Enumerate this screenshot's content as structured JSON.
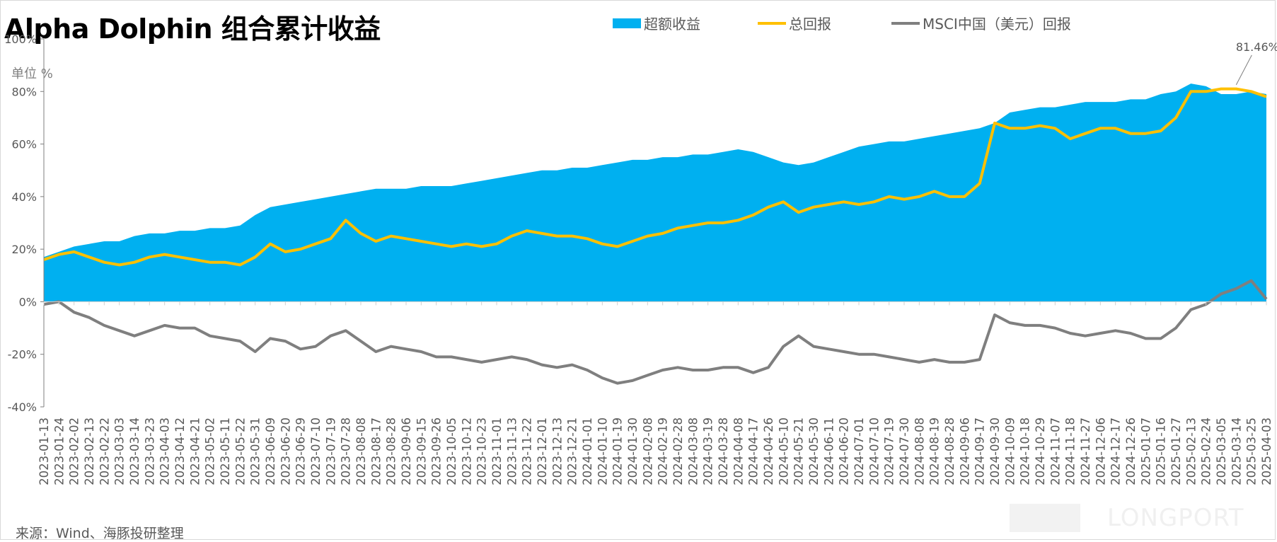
{
  "title": "Alpha Dolphin 组合累计收益",
  "unit_label": "单位  %",
  "source_note": "来源：Wind、海豚投研整理",
  "watermark_text": "LONGPORT",
  "chart_data": {
    "type": "area",
    "ylim": [
      -40,
      100
    ],
    "yticks": [
      -40,
      -20,
      0,
      20,
      40,
      60,
      80,
      100
    ],
    "ytick_labels": [
      "-40%",
      "-20%",
      "0%",
      "20%",
      "40%",
      "60%",
      "80%",
      "100%"
    ],
    "legend_position": "top",
    "grid": false,
    "x_dates": [
      "2023-01-13",
      "2023-01-24",
      "2023-02-02",
      "2023-02-13",
      "2023-02-22",
      "2023-03-03",
      "2023-03-14",
      "2023-03-23",
      "2023-04-03",
      "2023-04-12",
      "2023-04-21",
      "2023-05-02",
      "2023-05-11",
      "2023-05-22",
      "2023-05-31",
      "2023-06-09",
      "2023-06-20",
      "2023-06-29",
      "2023-07-10",
      "2023-07-19",
      "2023-07-28",
      "2023-08-08",
      "2023-08-17",
      "2023-08-28",
      "2023-09-06",
      "2023-09-15",
      "2023-09-26",
      "2023-10-05",
      "2023-10-12",
      "2023-10-23",
      "2023-11-01",
      "2023-11-13",
      "2023-11-22",
      "2023-12-01",
      "2023-12-13",
      "2023-12-21",
      "2024-01-01",
      "2024-01-10",
      "2024-01-19",
      "2024-01-30",
      "2024-02-08",
      "2024-02-19",
      "2024-02-28",
      "2024-03-08",
      "2024-03-19",
      "2024-03-28",
      "2024-04-08",
      "2024-04-17",
      "2024-04-26",
      "2024-05-10",
      "2024-05-21",
      "2024-05-30",
      "2024-06-11",
      "2024-06-20",
      "2024-07-01",
      "2024-07-10",
      "2024-07-19",
      "2024-07-30",
      "2024-08-08",
      "2024-08-19",
      "2024-08-28",
      "2024-09-06",
      "2024-09-17",
      "2024-09-30",
      "2024-10-09",
      "2024-10-18",
      "2024-10-29",
      "2024-11-07",
      "2024-11-18",
      "2024-11-27",
      "2024-12-06",
      "2024-12-17",
      "2024-12-26",
      "2025-01-07",
      "2025-01-16",
      "2025-01-27",
      "2025-02-13",
      "2025-02-24",
      "2025-03-05",
      "2025-03-14",
      "2025-03-25",
      "2025-04-03"
    ],
    "series": [
      {
        "name": "超额收益",
        "type": "area",
        "color": "#00b0f0",
        "values": [
          17,
          19,
          21,
          22,
          23,
          23,
          25,
          26,
          26,
          27,
          27,
          28,
          28,
          29,
          33,
          36,
          37,
          38,
          39,
          40,
          41,
          42,
          43,
          43,
          43,
          44,
          44,
          44,
          45,
          46,
          47,
          48,
          49,
          50,
          50,
          51,
          51,
          52,
          53,
          54,
          54,
          55,
          55,
          56,
          56,
          57,
          58,
          57,
          55,
          53,
          52,
          53,
          55,
          57,
          59,
          60,
          61,
          61,
          62,
          63,
          64,
          65,
          66,
          68,
          72,
          73,
          74,
          74,
          75,
          76,
          76,
          76,
          77,
          77,
          79,
          80,
          83,
          82,
          79,
          79,
          80,
          79
        ]
      },
      {
        "name": "总回报",
        "type": "line",
        "color": "#ffc000",
        "values": [
          16,
          18,
          19,
          17,
          15,
          14,
          15,
          17,
          18,
          17,
          16,
          15,
          15,
          14,
          17,
          22,
          19,
          20,
          22,
          24,
          31,
          26,
          23,
          25,
          24,
          23,
          22,
          21,
          22,
          21,
          22,
          25,
          27,
          26,
          25,
          25,
          24,
          22,
          21,
          23,
          25,
          26,
          28,
          29,
          30,
          30,
          31,
          33,
          36,
          38,
          34,
          36,
          37,
          38,
          37,
          38,
          40,
          39,
          40,
          42,
          40,
          40,
          45,
          68,
          66,
          66,
          67,
          66,
          62,
          64,
          66,
          66,
          64,
          64,
          65,
          70,
          80,
          80,
          81,
          81,
          80,
          78
        ]
      },
      {
        "name": "MSCI中国（美元）回报",
        "type": "line",
        "color": "#7f7f7f",
        "values": [
          -1,
          0,
          -4,
          -6,
          -9,
          -11,
          -13,
          -11,
          -9,
          -10,
          -10,
          -13,
          -14,
          -15,
          -19,
          -14,
          -15,
          -18,
          -17,
          -13,
          -11,
          -15,
          -19,
          -17,
          -18,
          -19,
          -21,
          -21,
          -22,
          -23,
          -22,
          -21,
          -22,
          -24,
          -25,
          -24,
          -26,
          -29,
          -31,
          -30,
          -28,
          -26,
          -25,
          -26,
          -26,
          -25,
          -25,
          -27,
          -25,
          -17,
          -13,
          -17,
          -18,
          -19,
          -20,
          -20,
          -21,
          -22,
          -23,
          -22,
          -23,
          -23,
          -22,
          -5,
          -8,
          -9,
          -9,
          -10,
          -12,
          -13,
          -12,
          -11,
          -12,
          -14,
          -14,
          -10,
          -3,
          -1,
          3,
          5,
          8,
          1
        ]
      }
    ],
    "annotations": [
      {
        "text": "81.46%",
        "x": "2025-03-14",
        "y": 81.46
      }
    ]
  }
}
